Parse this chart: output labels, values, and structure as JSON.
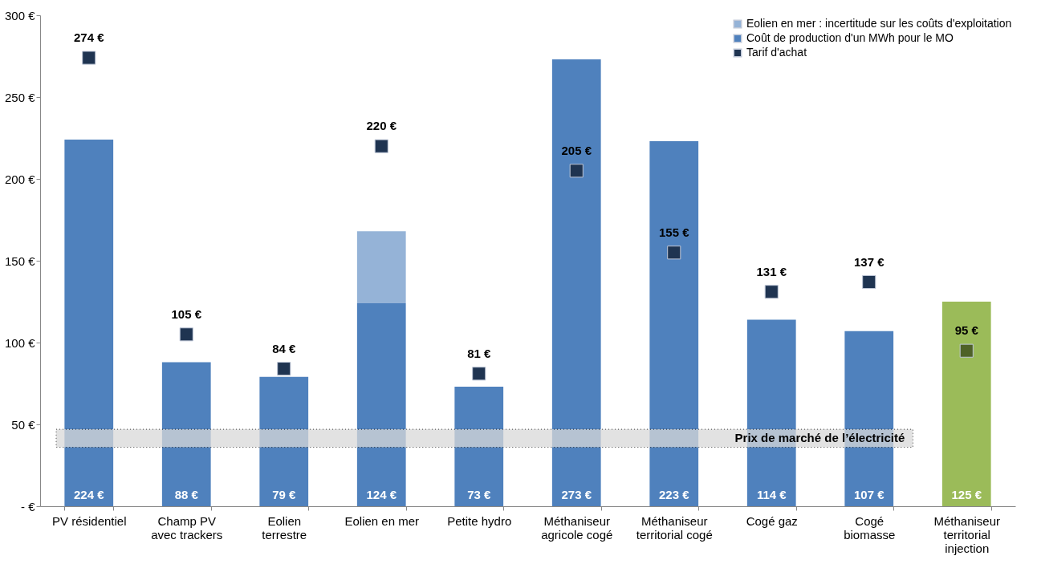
{
  "chart_data": {
    "type": "bar",
    "stacked": true,
    "categories": [
      "PV résidentiel",
      "Champ PV\navec trackers",
      "Eolien\nterrestre",
      "Eolien en mer",
      "Petite hydro",
      "Méthaniseur\nagricole cogé",
      "Méthaniseur\nterritorial cogé",
      "Cogé gaz",
      "Cogé\nbiomasse",
      "Méthaniseur\nterritorial\ninjection"
    ],
    "series": [
      {
        "name": "Coût de production d'un MWh pour le MO",
        "color": "#4f81bd",
        "colors": [
          "#4f81bd",
          "#4f81bd",
          "#4f81bd",
          "#4f81bd",
          "#4f81bd",
          "#4f81bd",
          "#4f81bd",
          "#4f81bd",
          "#4f81bd",
          "#9bbb59"
        ],
        "values": [
          224,
          88,
          79,
          124,
          73,
          273,
          223,
          114,
          107,
          125
        ],
        "value_labels": [
          "224 €",
          "88 €",
          "79 €",
          "124 €",
          "73 €",
          "273 €",
          "223 €",
          "114 €",
          "107 €",
          "125 €"
        ]
      },
      {
        "name": "Eolien en mer : incertitude sur les coûts d'exploitation",
        "color": "#95b3d7",
        "values": [
          null,
          null,
          null,
          44,
          null,
          null,
          null,
          null,
          null,
          null
        ]
      },
      {
        "name": "Tarif d'achat",
        "type": "scatter",
        "color": "#1f3451",
        "colors": [
          "#1f3451",
          "#1f3451",
          "#1f3451",
          "#1f3451",
          "#1f3451",
          "#1f3451",
          "#1f3451",
          "#1f3451",
          "#1f3451",
          "#4f6228"
        ],
        "values": [
          274,
          105,
          84,
          220,
          81,
          205,
          155,
          131,
          137,
          95
        ],
        "value_labels": [
          "274 €",
          "105 €",
          "84 €",
          "220 €",
          "81 €",
          "205 €",
          "155 €",
          "131 €",
          "137 €",
          "95 €"
        ]
      }
    ],
    "ylim": [
      0,
      300
    ],
    "yticks": [
      {
        "value": 0,
        "label": "- €"
      },
      {
        "value": 50,
        "label": "50 €"
      },
      {
        "value": 100,
        "label": "100 €"
      },
      {
        "value": 150,
        "label": "150 €"
      },
      {
        "value": 200,
        "label": "200 €"
      },
      {
        "value": 250,
        "label": "250 €"
      },
      {
        "value": 300,
        "label": "300 €"
      }
    ],
    "bands": [
      {
        "axis": "y",
        "from": 36,
        "to": 47,
        "label": "Prix de marché de l’électricité",
        "color": "#d9d9d9"
      }
    ],
    "marker": "square",
    "legend": "top right"
  }
}
